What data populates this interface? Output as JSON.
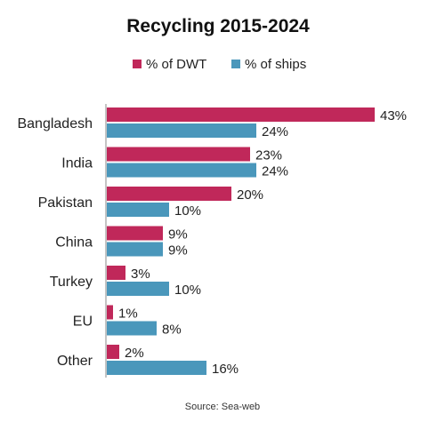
{
  "chart_data": {
    "type": "bar",
    "orientation": "horizontal",
    "title": "Recycling 2015-2024",
    "source": "Source: Sea-web",
    "categories": [
      "Bangladesh",
      "India",
      "Pakistan",
      "China",
      "Turkey",
      "EU",
      "Other"
    ],
    "series": [
      {
        "name": "% of DWT",
        "color": "#c0285a",
        "values": [
          43,
          23,
          20,
          9,
          3,
          1,
          2
        ],
        "labels": [
          "43%",
          "23%",
          "20%",
          "9%",
          "3%",
          "1%",
          "2%"
        ]
      },
      {
        "name": "% of ships",
        "color": "#4a97bb",
        "values": [
          24,
          24,
          10,
          9,
          10,
          8,
          16
        ],
        "labels": [
          "24%",
          "24%",
          "10%",
          "9%",
          "10%",
          "8%",
          "16%"
        ]
      }
    ],
    "xlim": [
      0,
      45
    ],
    "legend_position": "top",
    "grid": false
  }
}
